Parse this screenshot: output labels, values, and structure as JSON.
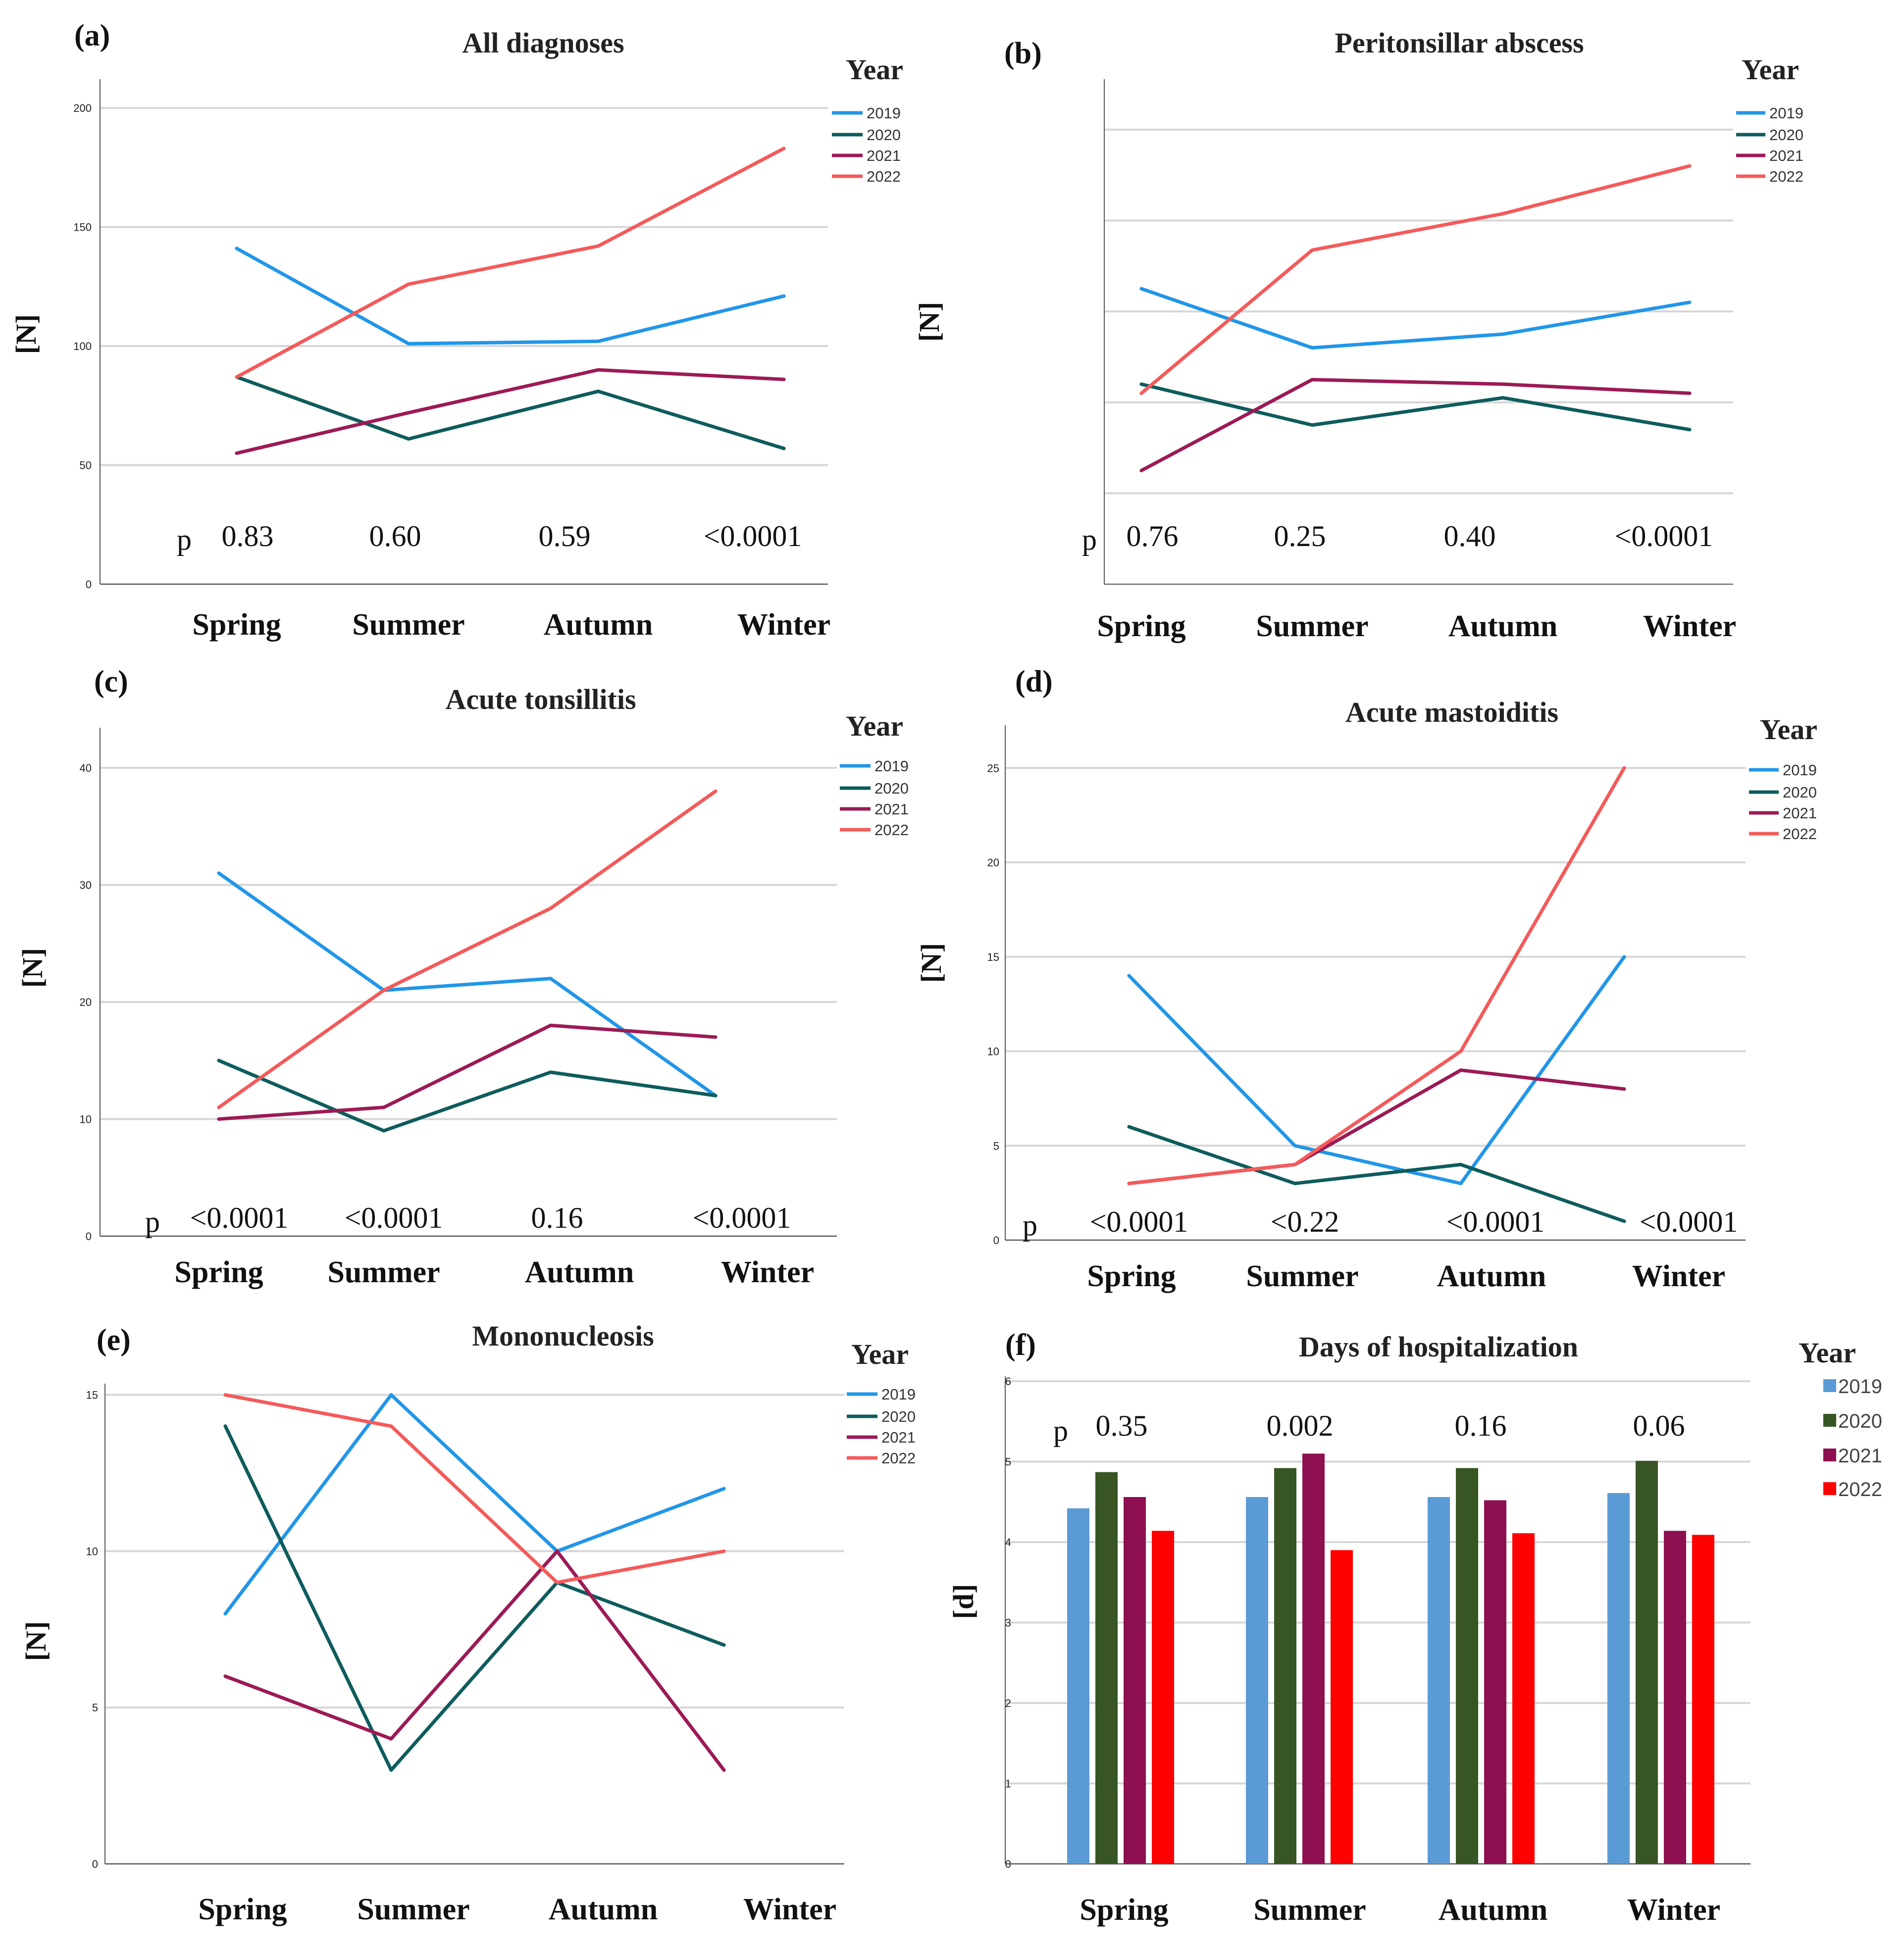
{
  "figure": {
    "seasons": [
      "Spring",
      "Summer",
      "Autumn",
      "Winter"
    ],
    "legend_title": "Year",
    "p_prefix": "p",
    "years": [
      "2019",
      "2020",
      "2021",
      "2022"
    ],
    "line_colors": {
      "2019": "#2196e8",
      "2020": "#0e5c5c",
      "2021": "#9c1a55",
      "2022": "#f45a5a"
    },
    "bar_colors": {
      "2019": "#5b9bd5",
      "2020": "#375623",
      "2021": "#8e1050",
      "2022": "#ff0000"
    }
  },
  "chart_data": [
    {
      "id": "a",
      "label": "(a)",
      "type": "line",
      "title": "All diagnoses",
      "ylabel": "[N]",
      "ylim": [
        0,
        210
      ],
      "yticks": [
        0,
        50,
        100,
        150,
        200
      ],
      "tick_labels": [
        "0",
        "50",
        "100",
        "150",
        "200"
      ],
      "categories": [
        "Spring",
        "Summer",
        "Autumn",
        "Winter"
      ],
      "series": [
        {
          "name": "2019",
          "values": [
            141,
            101,
            102,
            121
          ]
        },
        {
          "name": "2020",
          "values": [
            87,
            61,
            81,
            57
          ]
        },
        {
          "name": "2021",
          "values": [
            55,
            72,
            90,
            86
          ]
        },
        {
          "name": "2022",
          "values": [
            87,
            126,
            142,
            183
          ]
        }
      ],
      "p_values": [
        "0.83",
        "0.60",
        "0.59",
        "<0.0001"
      ]
    },
    {
      "id": "b",
      "label": "(b)",
      "type": "line",
      "title": "Peritonsillar abscess",
      "ylabel": "[N]",
      "ylim": [
        0,
        220
      ],
      "yticks": [
        40,
        80,
        120,
        160,
        200
      ],
      "tick_labels": [
        "",
        "",
        "",
        "",
        ""
      ],
      "categories": [
        "Spring",
        "Summer",
        "Autumn",
        "Winter"
      ],
      "series": [
        {
          "name": "2019",
          "values": [
            130,
            104,
            110,
            124
          ]
        },
        {
          "name": "2020",
          "values": [
            88,
            70,
            82,
            68
          ]
        },
        {
          "name": "2021",
          "values": [
            50,
            90,
            88,
            84
          ]
        },
        {
          "name": "2022",
          "values": [
            84,
            147,
            163,
            184
          ]
        }
      ],
      "p_values": [
        "0.76",
        "0.25",
        "0.40",
        "<0.0001"
      ]
    },
    {
      "id": "c",
      "label": "(c)",
      "type": "line",
      "title": "Acute tonsillitis",
      "ylabel": "[N]",
      "ylim": [
        0,
        43
      ],
      "yticks": [
        0,
        10,
        20,
        30,
        40
      ],
      "tick_labels": [
        "0",
        "10",
        "20",
        "30",
        "40"
      ],
      "categories": [
        "Spring",
        "Summer",
        "Autumn",
        "Winter"
      ],
      "series": [
        {
          "name": "2019",
          "values": [
            31,
            21,
            22,
            12
          ]
        },
        {
          "name": "2020",
          "values": [
            15,
            9,
            14,
            12
          ]
        },
        {
          "name": "2021",
          "values": [
            10,
            11,
            18,
            17
          ]
        },
        {
          "name": "2022",
          "values": [
            11,
            21,
            28,
            38
          ]
        }
      ],
      "p_values": [
        "<0.0001",
        "<0.0001",
        "0.16",
        "<0.0001"
      ]
    },
    {
      "id": "d",
      "label": "(d)",
      "type": "line",
      "title": "Acute mastoiditis",
      "ylabel": "[N]",
      "ylim": [
        0,
        27
      ],
      "yticks": [
        0,
        5,
        10,
        15,
        20,
        25
      ],
      "tick_labels": [
        "0",
        "5",
        "10",
        "15",
        "20",
        "25"
      ],
      "categories": [
        "Spring",
        "Summer",
        "Autumn",
        "Winter"
      ],
      "series": [
        {
          "name": "2019",
          "values": [
            14,
            5,
            3,
            15
          ]
        },
        {
          "name": "2020",
          "values": [
            6,
            3,
            4,
            1
          ]
        },
        {
          "name": "2021",
          "values": [
            3,
            4,
            9,
            8
          ]
        },
        {
          "name": "2022",
          "values": [
            3,
            4,
            10,
            25
          ]
        }
      ],
      "p_values": [
        "<0.0001",
        "<0.22",
        "<0.0001",
        "<0.0001"
      ]
    },
    {
      "id": "e",
      "label": "(e)",
      "type": "line",
      "title": "Mononucleosis",
      "ylabel": "[N]",
      "ylim": [
        0,
        15.2
      ],
      "yticks": [
        0,
        5,
        10,
        15
      ],
      "tick_labels": [
        "0",
        "5",
        "10",
        "15"
      ],
      "categories": [
        "Spring",
        "Summer",
        "Autumn",
        "Winter"
      ],
      "series": [
        {
          "name": "2019",
          "values": [
            8,
            15,
            10,
            12
          ]
        },
        {
          "name": "2020",
          "values": [
            14,
            3,
            9,
            7
          ]
        },
        {
          "name": "2021",
          "values": [
            6,
            4,
            10,
            3
          ]
        },
        {
          "name": "2022",
          "values": [
            15,
            14,
            9,
            10
          ]
        }
      ],
      "p_values": []
    },
    {
      "id": "f",
      "label": "(f)",
      "type": "bar",
      "title": "Days of hospitalization",
      "ylabel": "[d]",
      "ylim": [
        0,
        6
      ],
      "yticks": [
        0,
        1,
        2,
        3,
        4,
        5,
        6
      ],
      "tick_labels": [
        "0",
        "1",
        "2",
        "3",
        "4",
        "5",
        "6"
      ],
      "categories": [
        "Spring",
        "Summer",
        "Autumn",
        "Winter"
      ],
      "series": [
        {
          "name": "2019",
          "values": [
            4.42,
            4.56,
            4.56,
            4.61
          ]
        },
        {
          "name": "2020",
          "values": [
            4.87,
            4.92,
            4.92,
            5.01
          ]
        },
        {
          "name": "2021",
          "values": [
            4.56,
            5.1,
            4.52,
            4.14
          ]
        },
        {
          "name": "2022",
          "values": [
            4.14,
            3.9,
            4.11,
            4.09
          ]
        }
      ],
      "p_values": [
        "0.35",
        "0.002",
        "0.16",
        "0.06"
      ]
    }
  ]
}
